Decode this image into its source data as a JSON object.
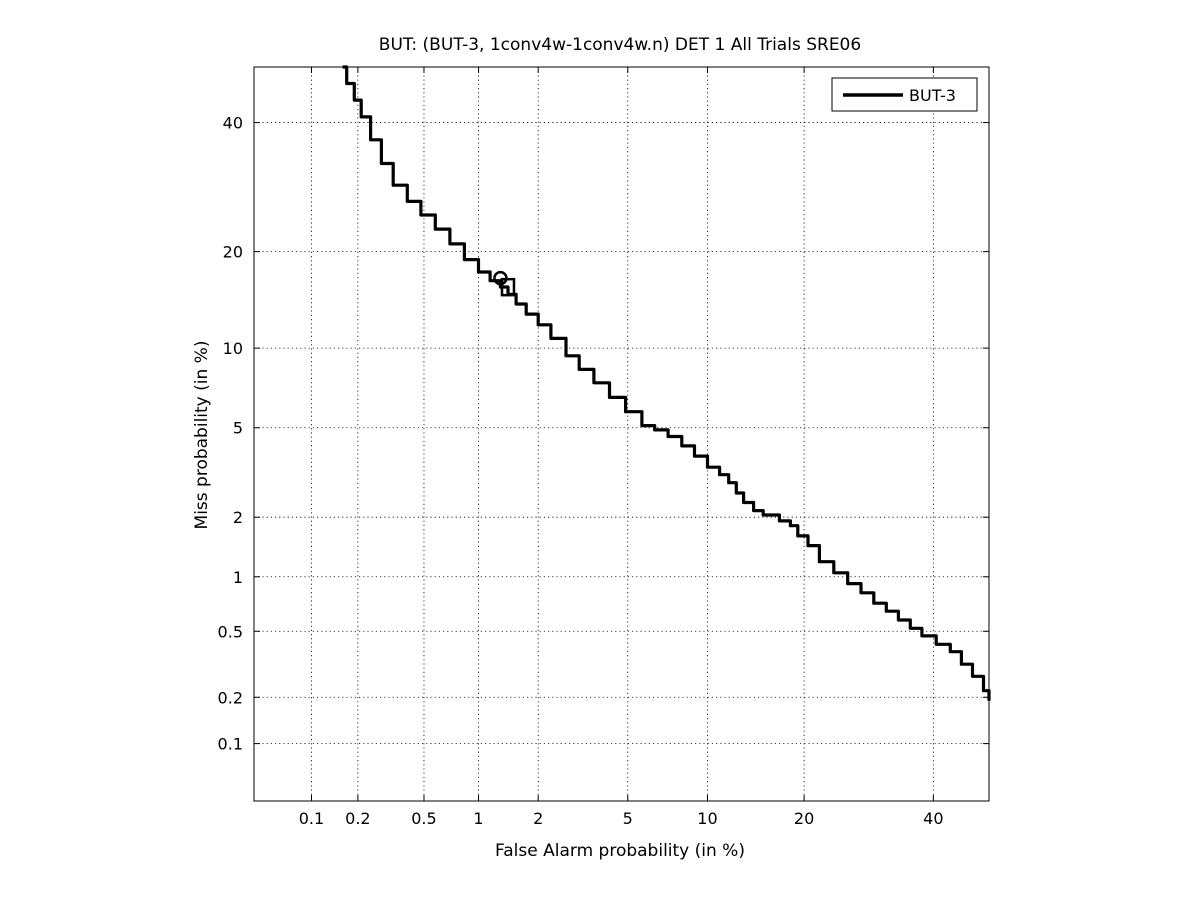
{
  "chart_data": {
    "type": "line",
    "title": "BUT: (BUT-3, 1conv4w-1conv4w.n) DET 1 All Trials SRE06",
    "xlabel": "False Alarm probability (in %)",
    "ylabel": "Miss probability (in %)",
    "x_scale": "normal-deviate (probit)",
    "y_scale": "normal-deviate (probit)",
    "xlim": [
      0.04,
      50
    ],
    "ylim": [
      0.04,
      50
    ],
    "x_ticks": [
      0.1,
      0.2,
      0.5,
      1,
      2,
      5,
      10,
      20,
      40
    ],
    "x_tick_labels": [
      "0.1",
      "0.2",
      "0.5",
      "1",
      "2",
      "5",
      "10",
      "20",
      "40"
    ],
    "y_ticks": [
      0.1,
      0.2,
      0.5,
      1,
      2,
      5,
      10,
      20,
      40
    ],
    "y_tick_labels": [
      "0.1",
      "0.2",
      "0.5",
      "1",
      "2",
      "5",
      "10",
      "20",
      "40"
    ],
    "grid": true,
    "legend_position": "top-right",
    "series": [
      {
        "name": "BUT-3",
        "color": "#000000",
        "x": [
          0.16,
          0.17,
          0.19,
          0.21,
          0.24,
          0.28,
          0.33,
          0.4,
          0.48,
          0.58,
          0.7,
          0.84,
          1.0,
          1.15,
          1.3,
          1.42,
          1.56,
          1.75,
          2.0,
          2.3,
          2.7,
          3.1,
          3.6,
          4.2,
          4.9,
          5.7,
          6.4,
          7.2,
          8.1,
          9.0,
          10.0,
          11.0,
          11.8,
          12.5,
          13.2,
          14.2,
          15.2,
          17.0,
          18.3,
          19.2,
          20.5,
          22.0,
          24.0,
          26.0,
          28.0,
          30.0,
          32.0,
          34.0,
          36.0,
          38.0,
          40.5,
          43.0,
          45.0,
          47.0,
          49.0,
          50.0
        ],
        "y": [
          50,
          47,
          44,
          41,
          37,
          33,
          29.5,
          27,
          25,
          23,
          21,
          19,
          17.5,
          16.5,
          15.8,
          15.0,
          14.0,
          13.0,
          12.0,
          10.8,
          9.4,
          8.4,
          7.5,
          6.6,
          5.8,
          5.1,
          4.9,
          4.6,
          4.2,
          3.8,
          3.4,
          3.15,
          2.9,
          2.6,
          2.35,
          2.15,
          2.05,
          1.92,
          1.82,
          1.62,
          1.45,
          1.2,
          1.05,
          0.92,
          0.82,
          0.72,
          0.65,
          0.58,
          0.52,
          0.47,
          0.42,
          0.38,
          0.32,
          0.27,
          0.22,
          0.19
        ]
      }
    ],
    "markers": [
      {
        "shape": "circle",
        "x": 1.3,
        "y": 16.8
      },
      {
        "shape": "square",
        "x": 1.42,
        "y": 16.0
      }
    ]
  }
}
